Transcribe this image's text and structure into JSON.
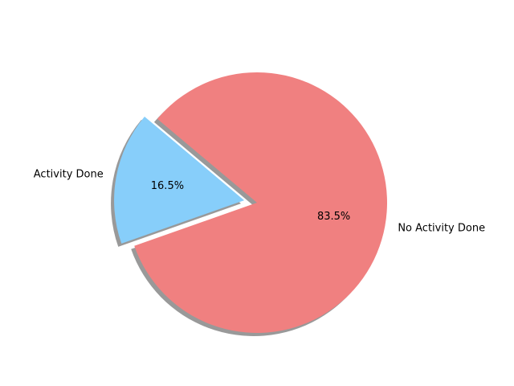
{
  "chart_data": {
    "type": "pie",
    "title": "",
    "labels": [
      "Activity Done",
      "No Activity Done"
    ],
    "values": [
      16.5,
      83.5
    ],
    "percent_labels": [
      "16.5%",
      "83.5%"
    ],
    "colors": [
      "#87cefa",
      "#f08080"
    ],
    "explode": [
      0.1,
      0
    ],
    "shadow": true,
    "legend": "none"
  }
}
